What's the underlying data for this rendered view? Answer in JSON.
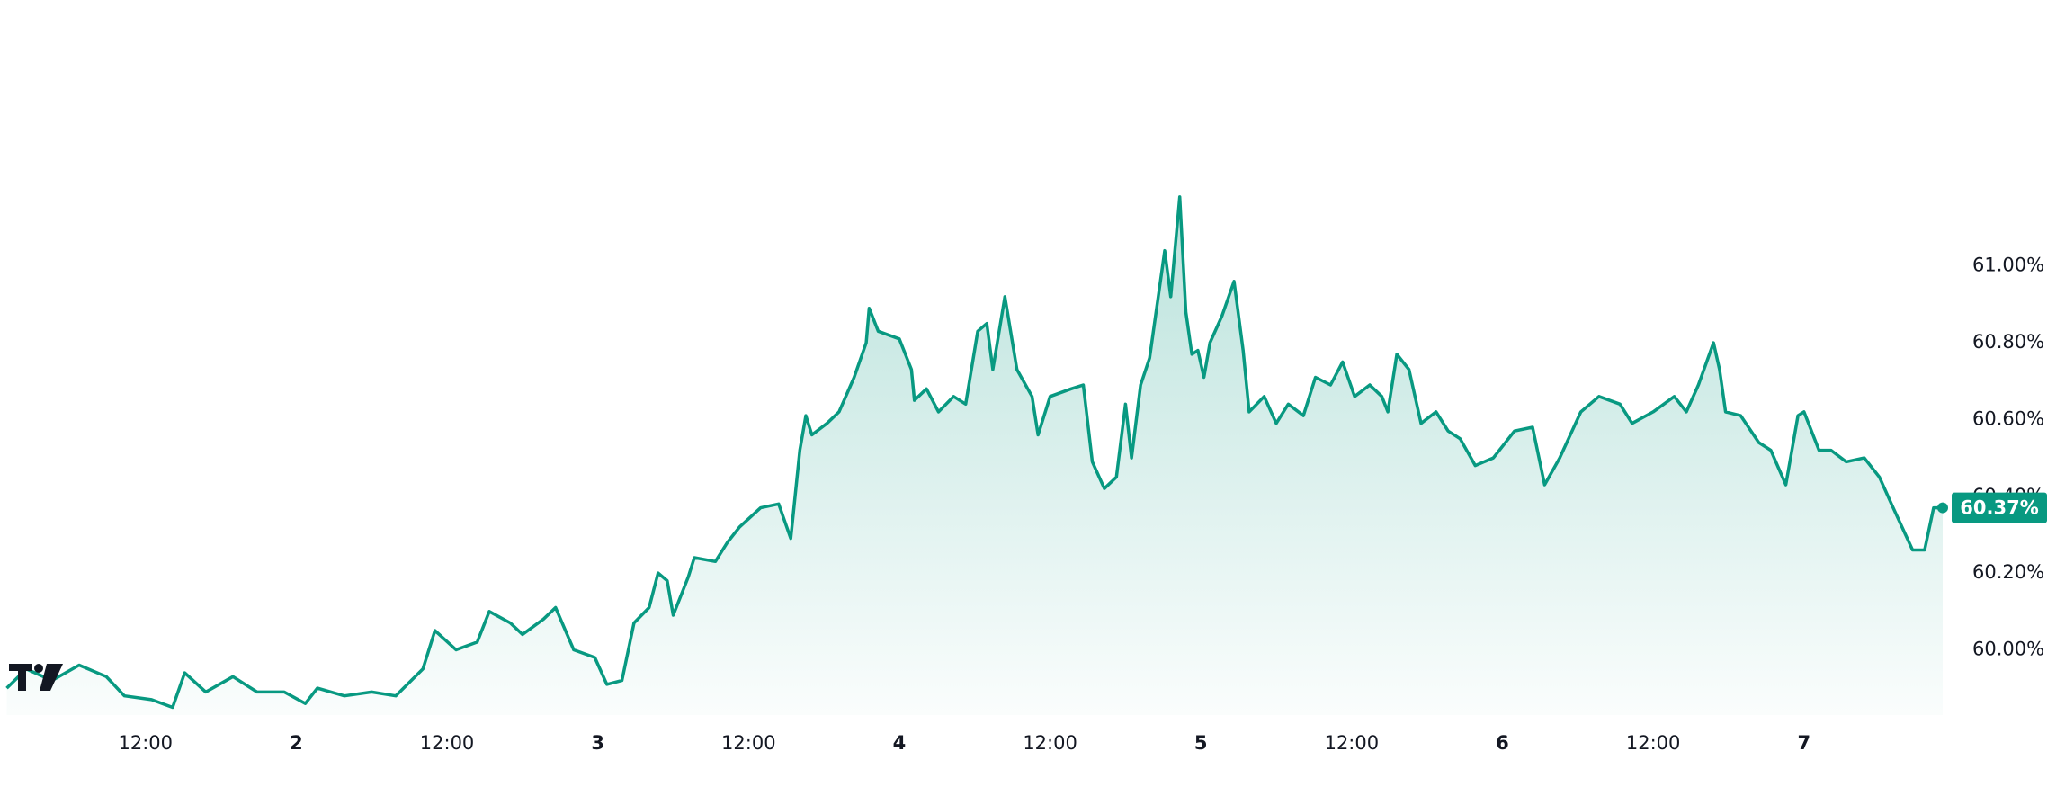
{
  "chart_data": {
    "type": "area",
    "color": "#089981",
    "x": [
      1.04,
      1.105,
      1.19,
      1.28,
      1.37,
      1.43,
      1.52,
      1.59,
      1.63,
      1.7,
      1.79,
      1.87,
      1.96,
      2.03,
      2.07,
      2.16,
      2.25,
      2.33,
      2.42,
      2.46,
      2.53,
      2.6,
      2.64,
      2.71,
      2.75,
      2.82,
      2.86,
      2.92,
      2.99,
      3.03,
      3.08,
      3.12,
      3.17,
      3.2,
      3.23,
      3.25,
      3.3,
      3.32,
      3.39,
      3.43,
      3.47,
      3.54,
      3.6,
      3.64,
      3.67,
      3.69,
      3.71,
      3.76,
      3.8,
      3.85,
      3.89,
      3.9,
      3.93,
      4.0,
      4.04,
      4.05,
      4.09,
      4.13,
      4.18,
      4.22,
      4.26,
      4.29,
      4.31,
      4.35,
      4.39,
      4.44,
      4.46,
      4.5,
      4.57,
      4.61,
      4.64,
      4.68,
      4.72,
      4.75,
      4.77,
      4.8,
      4.83,
      4.88,
      4.9,
      4.93,
      4.95,
      4.97,
      4.99,
      5.01,
      5.03,
      5.07,
      5.11,
      5.14,
      5.16,
      5.21,
      5.25,
      5.29,
      5.34,
      5.38,
      5.43,
      5.47,
      5.51,
      5.56,
      5.6,
      5.62,
      5.65,
      5.69,
      5.73,
      5.78,
      5.82,
      5.86,
      5.91,
      5.97,
      6.04,
      6.1,
      6.14,
      6.19,
      6.26,
      6.32,
      6.39,
      6.43,
      6.5,
      6.57,
      6.61,
      6.65,
      6.7,
      6.72,
      6.74,
      6.79,
      6.85,
      6.89,
      6.94,
      6.98,
      7.0,
      7.05,
      7.09,
      7.14,
      7.2,
      7.25,
      7.29,
      7.36,
      7.4,
      7.43,
      7.46
    ],
    "values": [
      59.9,
      59.95,
      59.92,
      59.96,
      59.93,
      59.88,
      59.87,
      59.85,
      59.94,
      59.89,
      59.93,
      59.89,
      59.89,
      59.86,
      59.9,
      59.88,
      59.89,
      59.88,
      59.95,
      60.05,
      60.0,
      60.02,
      60.1,
      60.07,
      60.04,
      60.08,
      60.11,
      60.0,
      59.98,
      59.91,
      59.92,
      60.07,
      60.11,
      60.2,
      60.18,
      60.09,
      60.19,
      60.24,
      60.23,
      60.28,
      60.32,
      60.37,
      60.38,
      60.29,
      60.52,
      60.61,
      60.56,
      60.59,
      60.62,
      60.71,
      60.8,
      60.89,
      60.83,
      60.81,
      60.73,
      60.65,
      60.68,
      60.62,
      60.66,
      60.64,
      60.83,
      60.85,
      60.73,
      60.92,
      60.73,
      60.66,
      60.56,
      60.66,
      60.68,
      60.69,
      60.49,
      60.42,
      60.45,
      60.64,
      60.5,
      60.69,
      60.76,
      61.04,
      60.92,
      61.18,
      60.88,
      60.77,
      60.78,
      60.71,
      60.8,
      60.87,
      60.96,
      60.78,
      60.62,
      60.66,
      60.59,
      60.64,
      60.61,
      60.71,
      60.69,
      60.75,
      60.66,
      60.69,
      60.66,
      60.62,
      60.77,
      60.73,
      60.59,
      60.62,
      60.57,
      60.55,
      60.48,
      60.5,
      60.57,
      60.58,
      60.43,
      60.5,
      60.62,
      60.66,
      60.64,
      60.59,
      60.62,
      60.66,
      60.62,
      60.69,
      60.8,
      60.73,
      60.62,
      60.61,
      60.54,
      60.52,
      60.43,
      60.61,
      60.62,
      60.52,
      60.52,
      60.49,
      60.5,
      60.45,
      60.38,
      60.26,
      60.26,
      60.37,
      60.37
    ],
    "current_value": {
      "value": 60.37,
      "label": "60.37%"
    },
    "xlim": [
      1.0175,
      7.469
    ],
    "xticks": [
      {
        "value": 1.5,
        "label": "12:00"
      },
      2,
      {
        "value": 2.5,
        "label": "12:00"
      },
      3,
      {
        "value": 3.5,
        "label": "12:00"
      },
      4,
      {
        "value": 4.5,
        "label": "12:00"
      },
      5,
      {
        "value": 5.5,
        "label": "12:00"
      },
      6,
      {
        "value": 6.5,
        "label": "12:00"
      },
      7
    ],
    "ylim": [
      59.83,
      61.693
    ],
    "yticks": [
      {
        "value": 60,
        "label": "60.00%"
      },
      {
        "value": 60.2,
        "label": "60.20%"
      },
      {
        "value": 60.4,
        "label": "60.40%"
      },
      {
        "value": 60.6,
        "label": "60.60%"
      },
      {
        "value": 60.8,
        "label": "60.80%"
      },
      {
        "value": 61,
        "label": "61.00%"
      }
    ]
  }
}
